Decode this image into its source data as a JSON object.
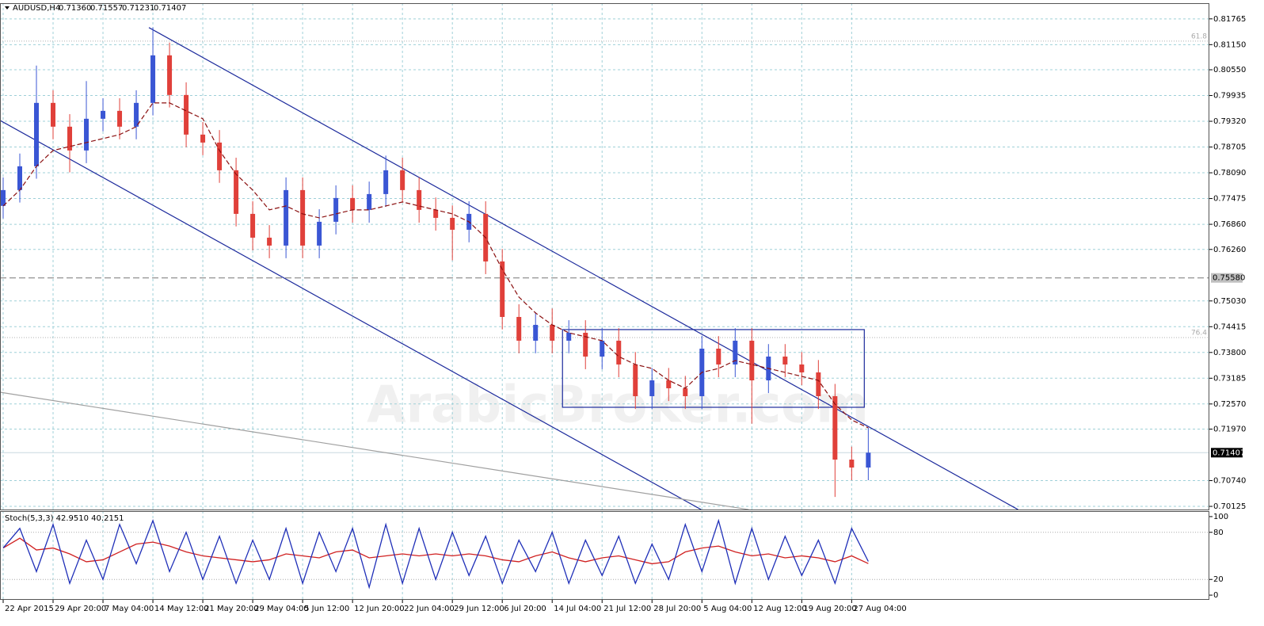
{
  "chart_data": {
    "type": "candlestick",
    "title": "AUDUSD,H4",
    "ohlc_header": [
      "0.71360",
      "0.71557",
      "0.71231",
      "0.71407"
    ],
    "watermark": "ArabicBroker.com",
    "grid": true,
    "up_color": "#3a56d4",
    "down_color": "#e0403a",
    "xlim": [
      -0.19,
      72.5
    ],
    "xticks": [
      {
        "value": 0,
        "label": "22 Apr 2015"
      },
      {
        "value": 3,
        "label": "29 Apr 20:00"
      },
      {
        "value": 6,
        "label": "7 May 04:00"
      },
      {
        "value": 9,
        "label": "14 May 12:00"
      },
      {
        "value": 12,
        "label": "21 May 20:00"
      },
      {
        "value": 15,
        "label": "29 May 04:00"
      },
      {
        "value": 18,
        "label": "5 Jun 12:00"
      },
      {
        "value": 21,
        "label": "12 Jun 20:00"
      },
      {
        "value": 24,
        "label": "22 Jun 04:00"
      },
      {
        "value": 27,
        "label": "29 Jun 12:00"
      },
      {
        "value": 30,
        "label": "6 Jul 20:00"
      },
      {
        "value": 33,
        "label": "14 Jul 04:00"
      },
      {
        "value": 36,
        "label": "21 Jul 12:00"
      },
      {
        "value": 39,
        "label": "28 Jul 20:00"
      },
      {
        "value": 42,
        "label": "5 Aug 04:00"
      },
      {
        "value": 45,
        "label": "12 Aug 12:00"
      },
      {
        "value": 48,
        "label": "19 Aug 20:00"
      },
      {
        "value": 51,
        "label": "27 Aug 04:00"
      }
    ],
    "ylim": [
      0.7005,
      0.8214
    ],
    "yticks": [
      {
        "value": 0.81765,
        "label": "0.81765"
      },
      {
        "value": 0.8115,
        "label": "0.81150"
      },
      {
        "value": 0.8055,
        "label": "0.80550"
      },
      {
        "value": 0.79935,
        "label": "0.79935"
      },
      {
        "value": 0.7932,
        "label": "0.79320"
      },
      {
        "value": 0.78705,
        "label": "0.78705"
      },
      {
        "value": 0.7809,
        "label": "0.78090"
      },
      {
        "value": 0.77475,
        "label": "0.77475"
      },
      {
        "value": 0.7686,
        "label": "0.76860"
      },
      {
        "value": 0.7626,
        "label": "0.76260"
      },
      {
        "value": 0.7503,
        "label": "0.75030"
      },
      {
        "value": 0.74415,
        "label": "0.74415"
      },
      {
        "value": 0.738,
        "label": "0.73800"
      },
      {
        "value": 0.73185,
        "label": "0.73185"
      },
      {
        "value": 0.7257,
        "label": "0.72570"
      },
      {
        "value": 0.7197,
        "label": "0.71970"
      },
      {
        "value": 0.7074,
        "label": "0.70740"
      },
      {
        "value": 0.70125,
        "label": "0.70125"
      }
    ],
    "open": [
      0.773,
      0.77677,
      0.78245,
      0.79759,
      0.79191,
      0.78623,
      0.7938,
      0.79569,
      0.79191,
      0.79759,
      0.80894,
      0.79948,
      0.79002,
      0.78812,
      0.7815,
      0.77109,
      0.76541,
      0.76352,
      0.77677,
      0.76352,
      0.7692,
      0.77488,
      0.77204,
      0.77582,
      0.7815,
      0.77677,
      0.77204,
      0.77014,
      0.7673,
      0.77109,
      0.75973,
      0.74648,
      0.74081,
      0.74459,
      0.74081,
      0.7427,
      0.73702,
      0.74081,
      0.73513,
      0.72756,
      0.73134,
      0.72945,
      0.72756,
      0.73891,
      0.73513,
      0.74081,
      0.73134,
      0.73702,
      0.73513,
      0.73324,
      0.72756,
      0.71242,
      0.71052
    ],
    "high": [
      0.7798,
      0.7855,
      0.8065,
      0.8006,
      0.7949,
      0.8028,
      0.7987,
      0.7987,
      0.8006,
      0.8156,
      0.812,
      0.8025,
      0.793,
      0.7911,
      0.7845,
      0.7741,
      0.7684,
      0.7798,
      0.7798,
      0.7722,
      0.7779,
      0.7779,
      0.7788,
      0.785,
      0.7845,
      0.7798,
      0.775,
      0.7731,
      0.7741,
      0.7741,
      0.7627,
      0.7495,
      0.7476,
      0.7485,
      0.7457,
      0.7457,
      0.7438,
      0.7438,
      0.7381,
      0.7343,
      0.7343,
      0.7324,
      0.742,
      0.7419,
      0.7438,
      0.7438,
      0.74,
      0.74,
      0.7381,
      0.7362,
      0.7305,
      0.7155,
      0.72
    ],
    "low": [
      0.77,
      0.7738,
      0.7795,
      0.7889,
      0.781,
      0.7832,
      0.7908,
      0.7889,
      0.7889,
      0.7946,
      0.7965,
      0.787,
      0.7851,
      0.7785,
      0.7681,
      0.7624,
      0.7605,
      0.7605,
      0.7605,
      0.7605,
      0.7662,
      0.769,
      0.769,
      0.7728,
      0.7738,
      0.769,
      0.7671,
      0.76,
      0.7643,
      0.7567,
      0.7435,
      0.7378,
      0.7378,
      0.7378,
      0.7378,
      0.734,
      0.734,
      0.7321,
      0.7245,
      0.7245,
      0.7264,
      0.7245,
      0.7245,
      0.7321,
      0.7321,
      0.721,
      0.7283,
      0.7321,
      0.7302,
      0.7245,
      0.7035,
      0.7075,
      0.7075
    ],
    "close": [
      0.77677,
      0.78245,
      0.79759,
      0.79191,
      0.78623,
      0.7938,
      0.79569,
      0.79191,
      0.79759,
      0.80894,
      0.79948,
      0.79002,
      0.78812,
      0.7815,
      0.77109,
      0.76541,
      0.76352,
      0.77677,
      0.76352,
      0.7692,
      0.77488,
      0.77204,
      0.77582,
      0.7815,
      0.77677,
      0.77204,
      0.77014,
      0.7673,
      0.77109,
      0.75973,
      0.74648,
      0.74081,
      0.74459,
      0.74081,
      0.7427,
      0.73702,
      0.74081,
      0.73513,
      0.72756,
      0.73134,
      0.72945,
      0.72756,
      0.73891,
      0.73513,
      0.74081,
      0.73134,
      0.73702,
      0.73513,
      0.73324,
      0.72756,
      0.71242,
      0.71052,
      0.71407
    ],
    "ma": {
      "color": "#8b1010",
      "values": [
        0.77298,
        0.77677,
        0.78245,
        0.78623,
        0.78718,
        0.78812,
        0.78907,
        0.79002,
        0.79191,
        0.79759,
        0.79759,
        0.79569,
        0.7938,
        0.78623,
        0.78055,
        0.77677,
        0.77204,
        0.77298,
        0.77109,
        0.77014,
        0.77109,
        0.77204,
        0.77204,
        0.77298,
        0.77393,
        0.77298,
        0.77204,
        0.77109,
        0.7692,
        0.76541,
        0.75784,
        0.75122,
        0.74743,
        0.74459,
        0.7427,
        0.74175,
        0.74081,
        0.73702,
        0.73513,
        0.73418,
        0.73134,
        0.72945,
        0.73324,
        0.73418,
        0.73607,
        0.73513,
        0.73418,
        0.73324,
        0.73229,
        0.73134,
        0.72566,
        0.72188,
        0.71999
      ]
    },
    "trendlines": [
      {
        "color": "#1c2a9c",
        "x": [
          8.76,
          61.0
        ],
        "y": [
          0.81557,
          0.70049
        ]
      },
      {
        "color": "#1c2a9c",
        "x": [
          -0.19,
          41.95
        ],
        "y": [
          0.79342,
          0.70049
        ]
      },
      {
        "color": "#a0a0a0",
        "x": [
          -0.19,
          44.81
        ],
        "y": [
          0.7285,
          0.70049
        ]
      }
    ],
    "rectangle": {
      "color": "#1c2a9c",
      "x": [
        33.62,
        51.76
      ],
      "y": [
        0.72491,
        0.74346
      ]
    },
    "hline": {
      "value": 0.7558,
      "label": "0.75580"
    },
    "fib_levels": [
      {
        "value": 0.81235,
        "label": "61.8"
      },
      {
        "value": 0.74156,
        "label": "76.4"
      }
    ],
    "last_price": {
      "value": 0.71407,
      "label": "0.71407"
    },
    "stochastic": {
      "title": "Stoch(5,3,3) 42.9510 40.2151",
      "ylim": [
        -6,
        107
      ],
      "yticks": [
        100,
        80,
        20,
        0
      ],
      "series": [
        {
          "color": "#1f2fb8",
          "values": [
            60,
            85,
            30,
            90,
            15,
            70,
            20,
            90,
            40,
            95,
            30,
            80,
            20,
            75,
            15,
            70,
            20,
            85,
            15,
            80,
            30,
            85,
            10,
            90,
            15,
            85,
            20,
            80,
            25,
            75,
            15,
            70,
            30,
            80,
            15,
            70,
            25,
            75,
            15,
            65,
            20,
            90,
            30,
            95,
            15,
            85,
            20,
            75,
            25,
            70,
            15,
            85,
            42.951
          ]
        },
        {
          "color": "#d02020",
          "values": [
            60,
            72.5,
            57.5,
            60,
            52.5,
            42.5,
            45,
            55,
            65,
            67.5,
            62.5,
            55,
            50,
            47.5,
            45,
            42.5,
            45,
            52.5,
            50,
            47.5,
            55,
            57.5,
            47.5,
            50,
            52.5,
            50,
            52.5,
            50,
            52.5,
            50,
            45,
            42.5,
            50,
            55,
            47.5,
            42.5,
            47.5,
            50,
            45,
            40,
            42.5,
            55,
            60,
            62.5,
            55,
            50,
            52.5,
            47.5,
            50,
            47.5,
            42.5,
            50,
            40.2151
          ]
        }
      ]
    }
  }
}
